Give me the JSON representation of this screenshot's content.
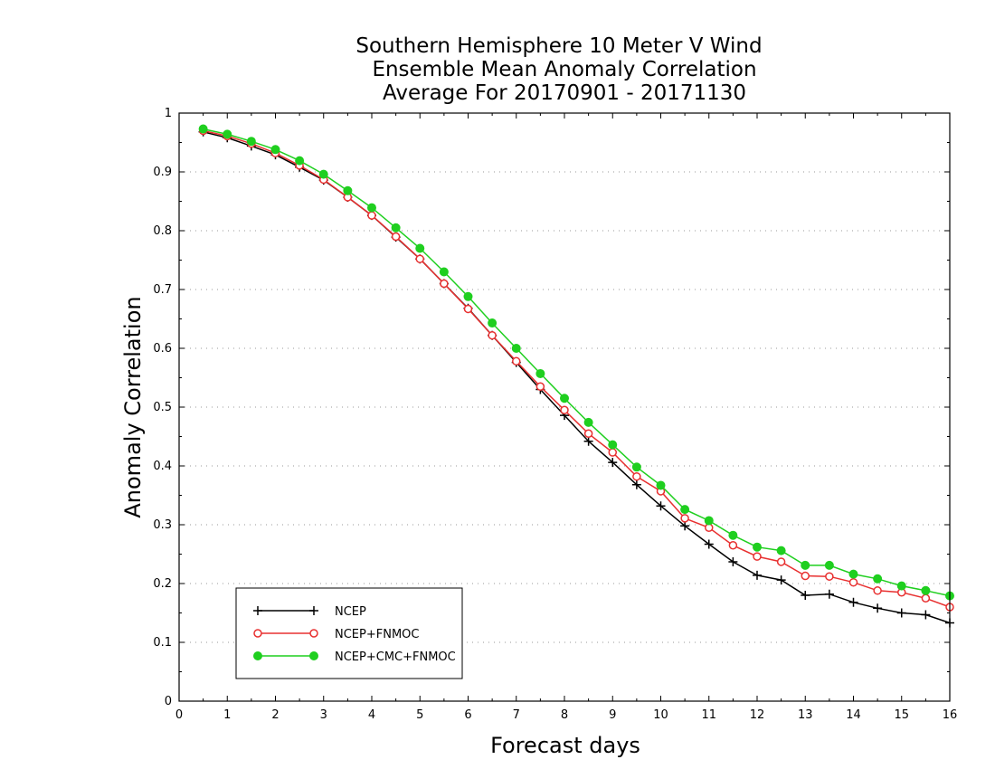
{
  "chart_data": {
    "type": "line",
    "title_lines": [
      "Southern Hemisphere 10 Meter V Wind",
      "Ensemble Mean Anomaly Correlation",
      "Average For 20170901 - 20171130"
    ],
    "xlabel": "Forecast days",
    "ylabel": "Anomaly Correlation",
    "xlim": [
      0,
      16
    ],
    "ylim": [
      0,
      1
    ],
    "x_ticks": [
      "0",
      "1",
      "2",
      "3",
      "4",
      "5",
      "6",
      "7",
      "8",
      "9",
      "10",
      "11",
      "12",
      "13",
      "14",
      "15",
      "16"
    ],
    "y_ticks": [
      "0",
      "0.1",
      "0.2",
      "0.3",
      "0.4",
      "0.5",
      "0.6",
      "0.7",
      "0.8",
      "0.9",
      "1"
    ],
    "grid": "horizontal-dotted",
    "legend_position": "bottom-left",
    "x": [
      0.5,
      1,
      1.5,
      2,
      2.5,
      3,
      3.5,
      4,
      4.5,
      5,
      5.5,
      6,
      6.5,
      7,
      7.5,
      8,
      8.5,
      9,
      9.5,
      10,
      10.5,
      11,
      11.5,
      12,
      12.5,
      13,
      13.5,
      14,
      14.5,
      15,
      15.5,
      16
    ],
    "series": [
      {
        "name": "NCEP",
        "color": "#000000",
        "marker": "plus",
        "values": [
          0.968,
          0.958,
          0.944,
          0.929,
          0.908,
          0.886,
          0.857,
          0.826,
          0.789,
          0.752,
          0.71,
          0.668,
          0.622,
          0.576,
          0.53,
          0.486,
          0.442,
          0.406,
          0.368,
          0.332,
          0.298,
          0.267,
          0.237,
          0.214,
          0.206,
          0.18,
          0.182,
          0.168,
          0.158,
          0.15,
          0.147,
          0.133
        ]
      },
      {
        "name": "NCEP+FNMOC",
        "color": "#e83030",
        "marker": "open-circle",
        "values": [
          0.97,
          0.961,
          0.948,
          0.932,
          0.911,
          0.887,
          0.857,
          0.826,
          0.79,
          0.752,
          0.71,
          0.667,
          0.622,
          0.578,
          0.535,
          0.495,
          0.455,
          0.423,
          0.382,
          0.357,
          0.311,
          0.295,
          0.265,
          0.246,
          0.237,
          0.213,
          0.212,
          0.202,
          0.188,
          0.185,
          0.175,
          0.16
        ]
      },
      {
        "name": "NCEP+CMC+FNMOC",
        "color": "#1fcf1f",
        "marker": "filled-circle",
        "values": [
          0.973,
          0.964,
          0.952,
          0.938,
          0.919,
          0.896,
          0.868,
          0.839,
          0.805,
          0.77,
          0.73,
          0.688,
          0.643,
          0.6,
          0.557,
          0.515,
          0.474,
          0.436,
          0.398,
          0.367,
          0.326,
          0.307,
          0.282,
          0.262,
          0.256,
          0.231,
          0.231,
          0.216,
          0.208,
          0.196,
          0.188,
          0.179
        ]
      }
    ]
  }
}
